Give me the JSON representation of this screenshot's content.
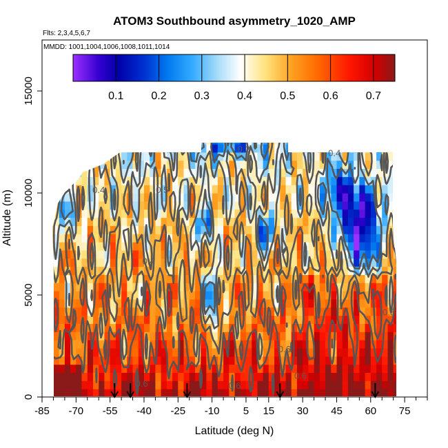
{
  "chart_data": {
    "type": "heatmap",
    "title": "ATOM3 Southbound asymmetry_1020_AMP",
    "subtitle_flights": "Flts: 2,3,4,5,6,7",
    "subtitle_dates": "MMDD: 1001,1004,1006,1008,1011,1014",
    "xlabel": "Latitude (deg N)",
    "ylabel": "Altitude (m)",
    "xlim": [
      -85,
      85
    ],
    "ylim": [
      0,
      17500
    ],
    "x_ticks": [
      -85,
      -70,
      -55,
      -40,
      -25,
      -10,
      5,
      15,
      30,
      45,
      60,
      75
    ],
    "x_tick_labels": [
      "-85",
      "-70",
      "-55",
      "-40",
      "-25",
      "-10",
      "5",
      "15",
      "30",
      "45",
      "60",
      "75"
    ],
    "y_ticks": [
      0,
      5000,
      10000,
      15000
    ],
    "y_tick_labels": [
      "0",
      "5000",
      "10000",
      "15000"
    ],
    "colorbar": {
      "range": [
        0.0,
        0.75
      ],
      "ticks": [
        0.1,
        0.2,
        0.3,
        0.4,
        0.5,
        0.6,
        0.7
      ],
      "tick_labels": [
        "0.1",
        "0.2",
        "0.3",
        "0.4",
        "0.5",
        "0.6",
        "0.7"
      ]
    },
    "contour_labels": [
      {
        "text": "0.4",
        "lat": -60,
        "alt": 10000
      },
      {
        "text": "0.5",
        "lat": -32,
        "alt": 10000
      },
      {
        "text": "0.3",
        "lat": 4,
        "alt": 12000
      },
      {
        "text": "0.4",
        "lat": 44,
        "alt": 11800
      },
      {
        "text": "0.4",
        "lat": -38,
        "alt": 6500
      },
      {
        "text": "0.5",
        "lat": 68,
        "alt": 4000
      },
      {
        "text": "0.6",
        "lat": 22,
        "alt": 2200
      },
      {
        "text": "0.6",
        "lat": 29,
        "alt": 900
      },
      {
        "text": "0.6",
        "lat": 0,
        "alt": 400
      },
      {
        "text": "0.6",
        "lat": -41,
        "alt": 500
      }
    ],
    "flight_markers_lat": [
      -53,
      -46,
      -21,
      20,
      62
    ]
  }
}
